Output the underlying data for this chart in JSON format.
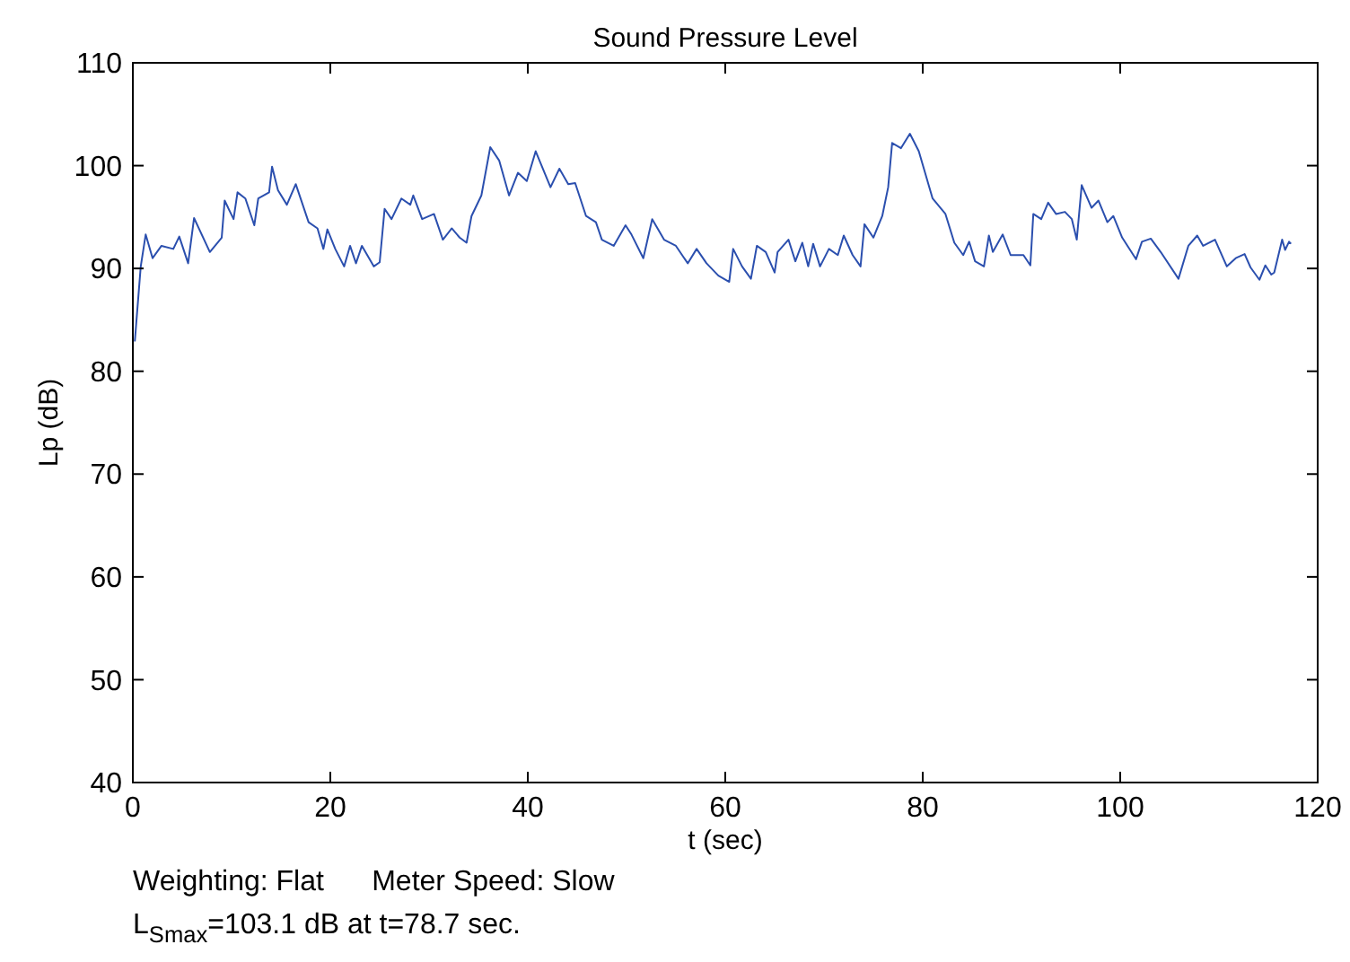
{
  "chart_data": {
    "type": "line",
    "title": "Sound Pressure Level",
    "xlabel": "t (sec)",
    "ylabel": "Lp (dB)",
    "xlim": [
      0,
      120
    ],
    "xticks": [
      0,
      20,
      40,
      60,
      80,
      100,
      120
    ],
    "ylim": [
      40,
      110
    ],
    "yticks": [
      40,
      50,
      60,
      70,
      80,
      90,
      100,
      110
    ],
    "grid": false,
    "marker": "none",
    "line_style": "solid",
    "annotations": [
      "Weighting: Flat      Meter Speed: Slow",
      "L$_{Smax}$=103.1 dB at t=78.7 sec."
    ],
    "series": [
      {
        "color": "#2b4fae",
        "x": [
          0.2,
          0.8,
          1.3,
          2,
          2.9,
          4.1,
          4.7,
          5.6,
          6.2,
          7.8,
          9,
          9.3,
          10.2,
          10.6,
          11.4,
          12.3,
          12.7,
          13.8,
          14.1,
          14.7,
          15.6,
          16.5,
          17.8,
          18.7,
          19.3,
          19.7,
          20.5,
          21.4,
          22,
          22.6,
          23.2,
          24.4,
          25,
          25.5,
          26.2,
          27.2,
          28.1,
          28.4,
          29.3,
          30.5,
          31.4,
          32.3,
          33.1,
          33.8,
          34.3,
          35.3,
          36.2,
          37.1,
          38.1,
          39,
          39.9,
          40.8,
          42.3,
          43.2,
          44.1,
          44.8,
          45.9,
          46.9,
          47.5,
          48.7,
          49.9,
          50.5,
          51.7,
          52.6,
          53.8,
          55,
          56.2,
          57.1,
          58.1,
          59.3,
          60.4,
          60.8,
          61.7,
          62.6,
          63.2,
          64.1,
          65,
          65.3,
          66.4,
          67.1,
          67.8,
          68.4,
          68.9,
          69.6,
          70.5,
          71.4,
          72,
          72.9,
          73.7,
          74.1,
          75,
          75.9,
          76.5,
          76.9,
          77.8,
          78.7,
          79.6,
          81,
          82.3,
          83.2,
          84.1,
          84.7,
          85.3,
          86.2,
          86.7,
          87.1,
          88.1,
          88.9,
          90.2,
          90.9,
          91.2,
          92,
          92.7,
          93.5,
          94.4,
          95.1,
          95.6,
          96.1,
          97.1,
          97.8,
          98.7,
          99.3,
          100.2,
          101.6,
          102.2,
          103.1,
          104.1,
          105.9,
          106.9,
          107.8,
          108.4,
          109.6,
          110.8,
          111.7,
          112.6,
          113.2,
          114.1,
          114.7,
          115.3,
          115.6,
          116.4,
          116.7,
          117.1,
          117.3
        ],
        "values": [
          82.9,
          90.2,
          93.3,
          91,
          92.2,
          91.9,
          93.1,
          90.5,
          94.9,
          91.6,
          93,
          96.6,
          94.8,
          97.4,
          96.8,
          94.2,
          96.8,
          97.4,
          99.9,
          97.6,
          96.2,
          98.2,
          94.5,
          93.9,
          91.9,
          93.8,
          91.9,
          90.2,
          92.2,
          90.5,
          92.2,
          90.2,
          90.6,
          95.8,
          94.8,
          96.8,
          96.2,
          97.1,
          94.8,
          95.3,
          92.8,
          93.9,
          93,
          92.5,
          95.1,
          97.1,
          101.8,
          100.5,
          97.1,
          99.3,
          98.5,
          101.4,
          97.9,
          99.7,
          98.2,
          98.3,
          95.1,
          94.5,
          92.8,
          92.2,
          94.2,
          93.3,
          91,
          94.8,
          92.8,
          92.2,
          90.5,
          91.9,
          90.5,
          89.3,
          88.7,
          91.9,
          90.2,
          89,
          92.2,
          91.6,
          89.6,
          91.6,
          92.8,
          90.7,
          92.5,
          90.2,
          92.4,
          90.2,
          91.9,
          91.3,
          93.2,
          91.3,
          90.2,
          94.3,
          93,
          95.1,
          97.9,
          102.2,
          101.7,
          103.1,
          101.4,
          96.8,
          95.3,
          92.5,
          91.3,
          92.6,
          90.7,
          90.2,
          93.2,
          91.6,
          93.3,
          91.3,
          91.3,
          90.3,
          95.3,
          94.8,
          96.4,
          95.3,
          95.5,
          94.8,
          92.8,
          98.1,
          95.9,
          96.6,
          94.5,
          95.1,
          93,
          90.9,
          92.6,
          92.9,
          91.6,
          89,
          92.2,
          93.2,
          92.2,
          92.8,
          90.2,
          91,
          91.4,
          90.1,
          88.9,
          90.3,
          89.4,
          89.6,
          92.8,
          91.8,
          92.6,
          92.4
        ]
      }
    ]
  }
}
